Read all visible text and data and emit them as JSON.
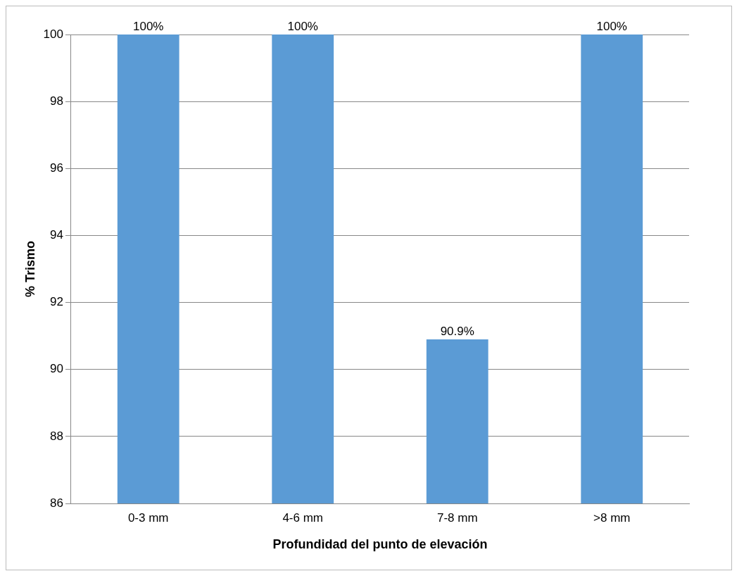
{
  "chart_data": {
    "type": "bar",
    "xlabel": "Profundidad del punto de elevación",
    "ylabel": "% Trismo",
    "categories": [
      "0-3 mm",
      "4-6 mm",
      "7-8 mm",
      ">8 mm"
    ],
    "values": [
      100,
      100,
      90.9,
      100
    ],
    "value_labels": [
      "100%",
      "100%",
      "90.9%",
      "100%"
    ],
    "color": "#5b9bd5",
    "ylim": [
      86,
      100
    ],
    "yticks": [
      86,
      88,
      90,
      92,
      94,
      96,
      98,
      100
    ],
    "grid": "y",
    "legend": false
  }
}
